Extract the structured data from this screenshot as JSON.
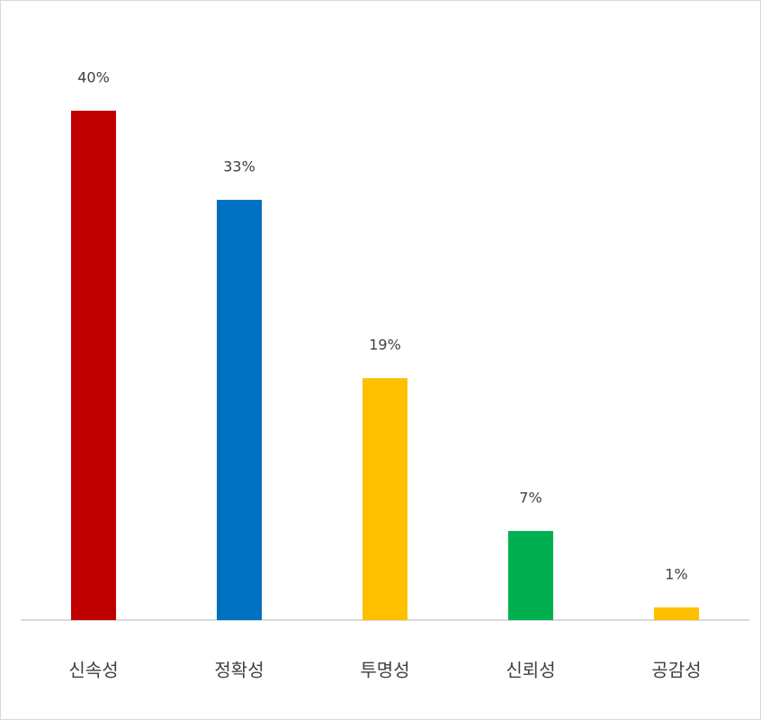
{
  "chart_data": {
    "type": "bar",
    "categories": [
      "신속성",
      "정확성",
      "투명성",
      "신뢰성",
      "공감성"
    ],
    "values": [
      40,
      33,
      19,
      7,
      1
    ],
    "value_labels": [
      "40%",
      "33%",
      "19%",
      "7%",
      "1%"
    ],
    "colors": [
      "#c00000",
      "#0070c0",
      "#ffc000",
      "#00b050",
      "#ffc000"
    ]
  }
}
